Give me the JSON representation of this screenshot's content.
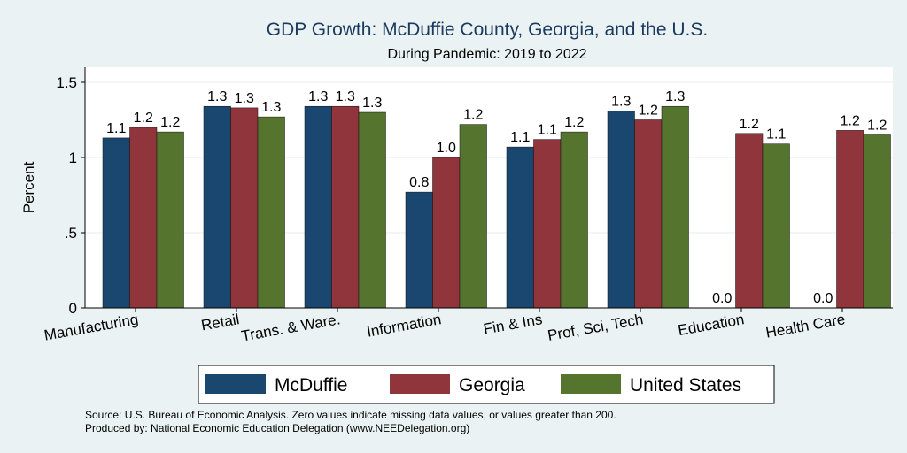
{
  "chart_data": {
    "type": "bar",
    "title": "GDP Growth: McDuffie County, Georgia, and the U.S.",
    "subtitle": "During Pandemic: 2019 to 2022",
    "ylabel": "Percent",
    "xlabel": "",
    "ylim": [
      0,
      1.6
    ],
    "yticks": [
      0,
      0.5,
      1,
      1.5
    ],
    "ytick_labels": [
      "0",
      ".5",
      "1",
      "1.5"
    ],
    "grid": true,
    "legend_position": "bottom",
    "categories": [
      "Manufacturing",
      "Retail",
      "Trans. & Ware.",
      "Information",
      "Fin & Ins",
      "Prof, Sci, Tech",
      "Education",
      "Health Care"
    ],
    "series": [
      {
        "name": "McDuffie",
        "color": "#1a476f",
        "values": [
          1.13,
          1.34,
          1.34,
          0.77,
          1.07,
          1.31,
          0,
          0
        ],
        "labels": [
          "1.1",
          "1.3",
          "1.3",
          "0.8",
          "1.1",
          "1.3",
          "0.0",
          "0.0"
        ]
      },
      {
        "name": "Georgia",
        "color": "#90353b",
        "values": [
          1.2,
          1.33,
          1.34,
          1.0,
          1.12,
          1.25,
          1.16,
          1.18
        ],
        "labels": [
          "1.2",
          "1.3",
          "1.3",
          "1.0",
          "1.1",
          "1.2",
          "1.2",
          "1.2"
        ]
      },
      {
        "name": "United States",
        "color": "#55752f",
        "values": [
          1.17,
          1.27,
          1.3,
          1.22,
          1.17,
          1.34,
          1.09,
          1.15
        ],
        "labels": [
          "1.2",
          "1.3",
          "1.3",
          "1.2",
          "1.2",
          "1.3",
          "1.1",
          "1.2"
        ]
      }
    ]
  },
  "source_line_1": "Source: U.S. Bureau of Economic Analysis. Zero values indicate missing data values, or values greater than 200.",
  "source_line_2": "Produced by: National Economic Education Delegation (www.NEEDelegation.org)"
}
